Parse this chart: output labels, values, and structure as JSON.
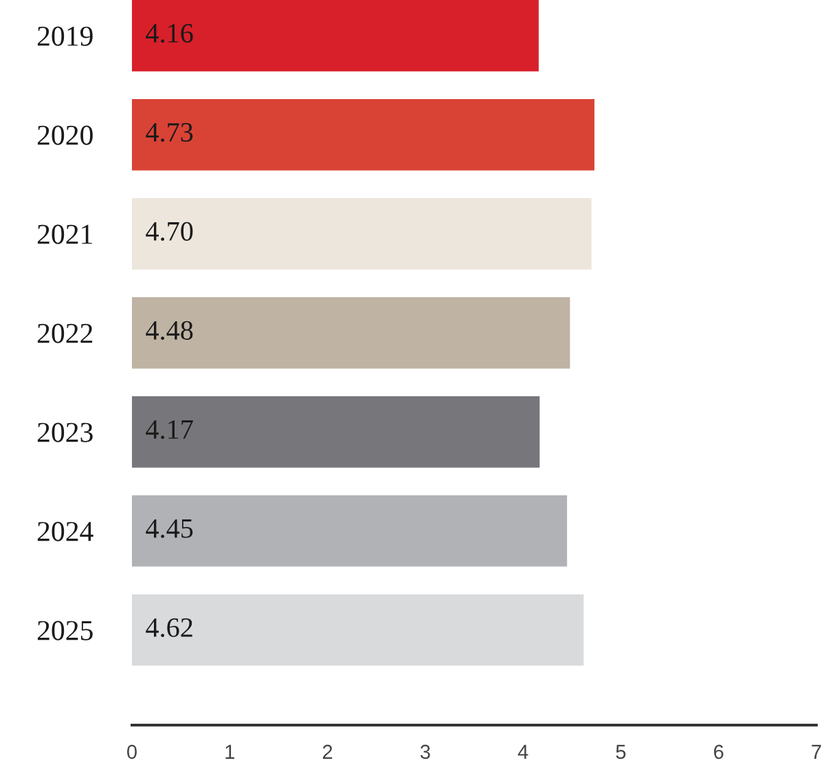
{
  "chart_data": {
    "type": "bar",
    "orientation": "horizontal",
    "categories": [
      "2019",
      "2020",
      "2021",
      "2022",
      "2023",
      "2024",
      "2025"
    ],
    "values": [
      4.16,
      4.73,
      4.7,
      4.48,
      4.17,
      4.45,
      4.62
    ],
    "value_labels": [
      "4.16",
      "4.73",
      "4.70",
      "4.48",
      "4.17",
      "4.45",
      "4.62"
    ],
    "colors": [
      "#d7202a",
      "#d94335",
      "#ede6dc",
      "#bfb3a3",
      "#77777b",
      "#b1b2b6",
      "#d9dadc"
    ],
    "xlim": [
      0,
      7
    ],
    "xticks": [
      0,
      1,
      2,
      3,
      4,
      5,
      6,
      7
    ]
  }
}
